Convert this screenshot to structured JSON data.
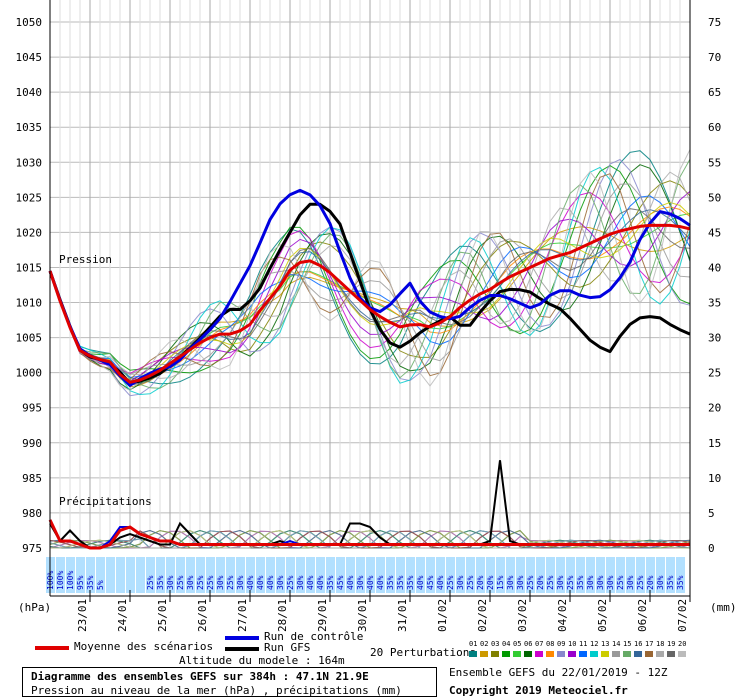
{
  "chart_data": {
    "type": "line",
    "left_axis_label": "(hPa)",
    "right_axis_label": "(mm)",
    "pressure_ticks": [
      "1050",
      "1045",
      "1040",
      "1035",
      "1030",
      "1025",
      "1020",
      "1015",
      "1010",
      "1005",
      "1000",
      "995",
      "990",
      "985",
      "980",
      "975"
    ],
    "precip_ticks": [
      "75",
      "70",
      "65",
      "60",
      "55",
      "50",
      "45",
      "40",
      "35",
      "30",
      "25",
      "20",
      "15",
      "10",
      "5",
      "0"
    ],
    "ylim_pressure": [
      975,
      1050
    ],
    "ylim_precip": [
      0,
      75
    ],
    "x_steps": 64,
    "x_labels": [
      "23/01",
      "24/01",
      "25/01",
      "26/01",
      "27/01",
      "28/01",
      "29/01",
      "30/01",
      "31/01",
      "01/02",
      "02/02",
      "03/02",
      "04/02",
      "05/02",
      "06/02",
      "07/02"
    ],
    "x_label_steps": [
      4,
      8,
      12,
      16,
      20,
      24,
      28,
      32,
      36,
      40,
      44,
      48,
      52,
      56,
      60,
      64
    ],
    "section_pressure_label": "Pression",
    "section_precip_label": "Précipitations",
    "snow_percent": [
      "100%",
      "100%",
      "100%",
      "95%",
      "35%",
      "5%",
      "",
      "",
      "",
      "",
      "25%",
      "35%",
      "30%",
      "25%",
      "30%",
      "25%",
      "25%",
      "30%",
      "25%",
      "30%",
      "40%",
      "40%",
      "40%",
      "30%",
      "25%",
      "30%",
      "40%",
      "40%",
      "35%",
      "45%",
      "40%",
      "30%",
      "40%",
      "40%",
      "35%",
      "35%",
      "35%",
      "40%",
      "45%",
      "40%",
      "25%",
      "30%",
      "25%",
      "20%",
      "20%",
      "15%",
      "30%",
      "30%",
      "25%",
      "20%",
      "25%",
      "30%",
      "25%",
      "35%",
      "30%",
      "30%",
      "30%",
      "25%",
      "30%",
      "25%",
      "20%",
      "30%",
      "35%",
      "35%"
    ],
    "series": [
      {
        "name": "Moyenne des scénarios",
        "color": "#e00000",
        "values": [
          1014.5,
          1008,
          1003,
          1002,
          1001.5,
          998.5,
          999,
          1000,
          1001.5,
          1003,
          1004.5,
          1005.5,
          1005.5,
          1006.5,
          1009.5,
          1012,
          1015.5,
          1016,
          1015,
          1013,
          1011,
          1009,
          1007.5,
          1006.5,
          1007,
          1006.5,
          1007.5,
          1009.5,
          1011,
          1012,
          1013.5,
          1014.5,
          1015.5,
          1016.5,
          1017,
          1018,
          1019,
          1020,
          1020.5,
          1021,
          1021,
          1021,
          1020.5
        ],
        "precip": [
          4,
          1,
          1,
          0.5,
          0,
          0,
          0.5,
          2.5,
          3,
          2,
          1.5,
          1,
          1,
          0.5,
          0.5,
          0.5,
          0.5,
          0.5,
          0.5,
          0.5,
          0.5,
          0.5,
          0.5,
          0.5,
          0.5,
          0.5,
          0.5,
          0.5,
          0.5,
          0.5,
          0.5,
          0.5,
          0.5,
          0.5,
          0.5,
          0.5,
          0.5,
          0.5,
          0.5,
          0.5,
          0.5,
          0.5,
          0.5,
          0.5,
          0.5,
          0.5,
          0.5,
          0.5,
          0.5,
          0.5,
          0.5,
          0.5,
          0.5,
          0.5,
          0.5,
          0.5,
          0.5,
          0.5,
          0.5,
          0.5,
          0.5,
          0.5,
          0.5,
          0.5,
          0.5
        ]
      },
      {
        "name": "Run de contrôle",
        "color": "#0000e0",
        "values": [
          1014.5,
          1008,
          1003,
          1002,
          1001,
          998,
          999.5,
          1000.5,
          1001,
          1003.5,
          1005.5,
          1008,
          1012,
          1016,
          1021.5,
          1025,
          1026,
          1025,
          1021,
          1014.5,
          1010,
          1008.5,
          1010,
          1013,
          1009,
          1008,
          1007.5,
          1009.5,
          1011,
          1011,
          1010,
          1009,
          1011,
          1012,
          1011,
          1010.5,
          1012,
          1015,
          1020,
          1023,
          1022.5,
          1021
        ],
        "precip": [
          4,
          1,
          1,
          0.5,
          0,
          0,
          1,
          3,
          3,
          2,
          1.5,
          1,
          1,
          0.5,
          0.5,
          0.5,
          0.5,
          0.5,
          0.5,
          0.5,
          0.5,
          0.5,
          0.5,
          0.5,
          1,
          0.5,
          0.5,
          0.5,
          0.5,
          0.5,
          0.5,
          0.5,
          0.5,
          0.5,
          0.5,
          0.5,
          0.5,
          0.5,
          0.5,
          0.5,
          0.5,
          0.5,
          0.5,
          0.5,
          0.5,
          0.5,
          0.5,
          0.5,
          0.5,
          0.5,
          0.5,
          0.5,
          0.5,
          0.5,
          0.5,
          0.5,
          0.5,
          0.5,
          0.5,
          0.5,
          0.5,
          0.5,
          0.5,
          0.5
        ]
      },
      {
        "name": "Run GFS",
        "color": "#000000",
        "values": [
          1014.5,
          1008,
          1002.5,
          1002,
          1001,
          998.5,
          999,
          1000,
          1002,
          1004,
          1006.5,
          1009,
          1009,
          1011.5,
          1016,
          1020,
          1024,
          1024,
          1022,
          1015.5,
          1009,
          1004.5,
          1003.5,
          1005.5,
          1007,
          1008,
          1006,
          1009,
          1011.5,
          1012,
          1011.5,
          1010,
          1009,
          1006.5,
          1004,
          1003,
          1006.5,
          1008,
          1008,
          1006.5,
          1005.5
        ],
        "precip": [
          3.5,
          1,
          2.5,
          1,
          0,
          0,
          0.5,
          1.5,
          2,
          1.5,
          1,
          0.5,
          0.5,
          3.5,
          2,
          0.5,
          0.5,
          0.5,
          0.5,
          0.5,
          0.5,
          0.5,
          0.5,
          1,
          0.5,
          0.5,
          0.5,
          0.5,
          0.5,
          0.5,
          3.5,
          3.5,
          3,
          1.5,
          0.5,
          0.5,
          0.5,
          0.5,
          0.5,
          0.5,
          0.5,
          0.5,
          0.5,
          0.5,
          1,
          12.5,
          1,
          0.5,
          0.5,
          0.5,
          0.5,
          0.5,
          0.5,
          0.5,
          0.5,
          0.5,
          0.5,
          0.5,
          0.5,
          0.5,
          0.5,
          0.5,
          0.5,
          0.5
        ]
      }
    ],
    "perturbation_colors": [
      "#008080",
      "#cc9900",
      "#808000",
      "#009900",
      "#33cc33",
      "#006600",
      "#cc00cc",
      "#ff8800",
      "#8888cc",
      "#9900cc",
      "#0066ff",
      "#00cccc",
      "#cccc00",
      "#999999",
      "#66aa66",
      "#336699",
      "#996633",
      "#aaaaaa",
      "#666666",
      "#bbbbbb"
    ]
  },
  "legend": {
    "mean_label": "Moyenne des scénarios",
    "control_label": "Run de contrôle",
    "gfs_label": "Run GFS",
    "perturbations_label": "20 Perturbations",
    "perturbation_numbers": [
      "01",
      "02",
      "03",
      "04",
      "05",
      "06",
      "07",
      "08",
      "09",
      "10",
      "11",
      "12",
      "13",
      "14",
      "15",
      "16",
      "17",
      "18",
      "19",
      "20"
    ],
    "model_altitude": "Altitude du modele : 164m"
  },
  "footer": {
    "title": "Diagramme des ensembles GEFS sur 384h : 47.1N 21.9E",
    "subtitle": "Pression au niveau de la mer (hPa) , précipitations (mm)",
    "run_info": "Ensemble GEFS du 22/01/2019 - 12Z",
    "copyright": "Copyright 2019 Meteociel.fr"
  }
}
